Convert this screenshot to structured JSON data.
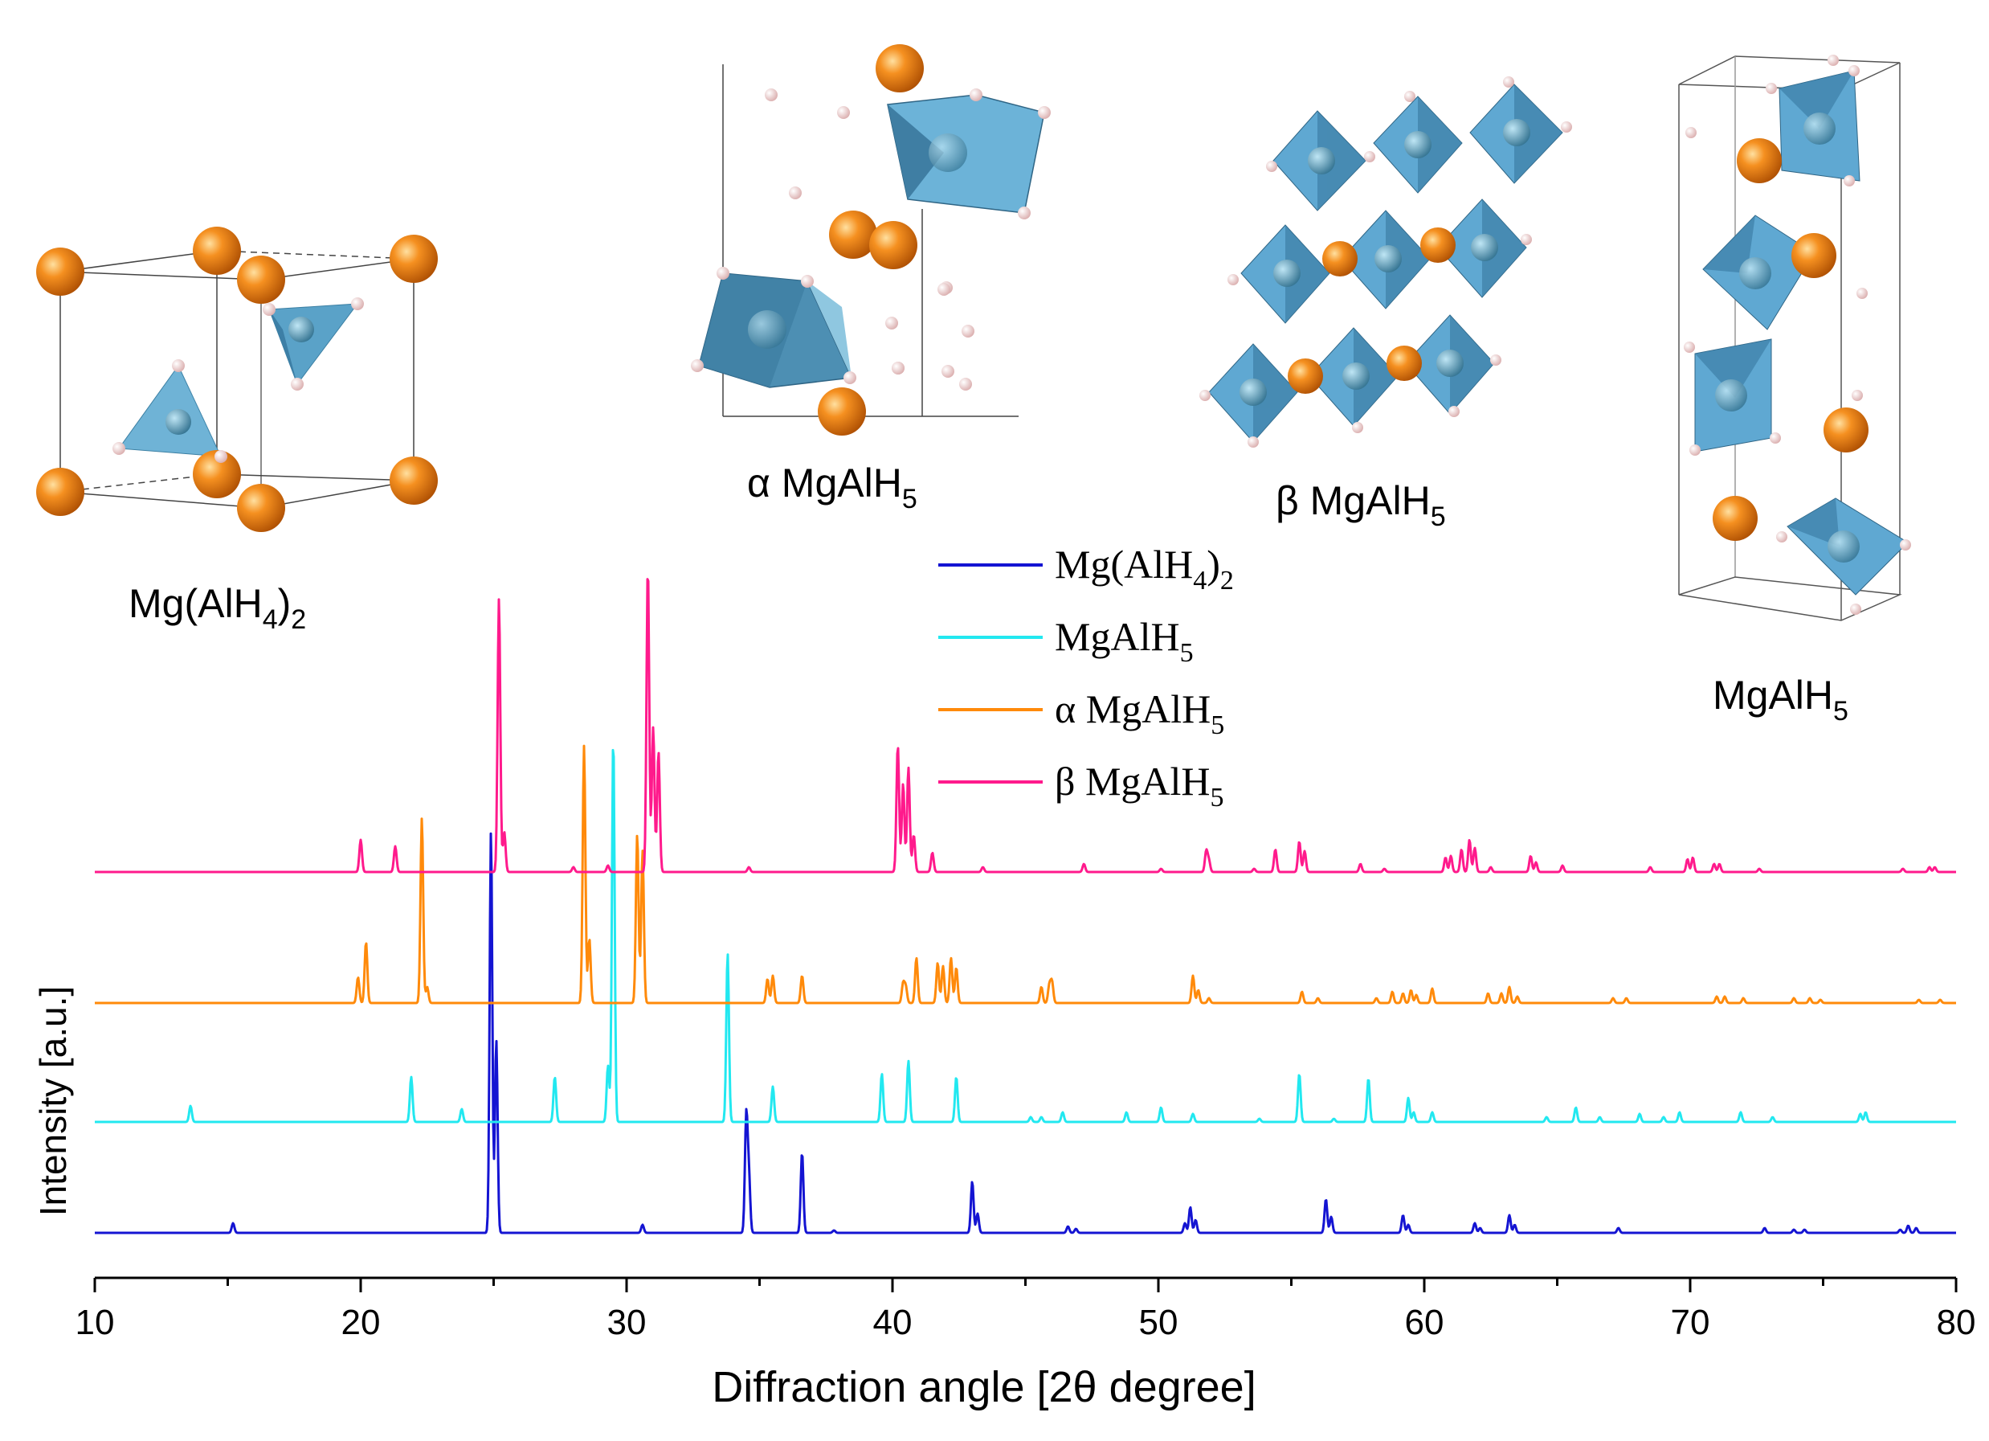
{
  "chart_data": {
    "type": "line",
    "title": "",
    "xlabel": "Diffraction angle [2θ degree]",
    "ylabel": "Intensity [a.u.]",
    "xlim": [
      10,
      80
    ],
    "x_ticks": [
      10,
      20,
      30,
      40,
      50,
      60,
      70,
      80
    ],
    "y_ticks": [],
    "grid": false,
    "legend_position": "top-center",
    "series": [
      {
        "name": "Mg(AlH4)2",
        "label_main": "Mg(AlH",
        "label_sub": "4",
        "label_tail": ")",
        "label_sub2": "2",
        "color": "#1414d2",
        "baseline": 0,
        "peaks": [
          [
            15.2,
            0.6
          ],
          [
            24.9,
            25
          ],
          [
            25.1,
            12
          ],
          [
            30.6,
            0.5
          ],
          [
            34.5,
            7.2
          ],
          [
            34.6,
            3.5
          ],
          [
            36.6,
            5.0
          ],
          [
            37.8,
            0.15
          ],
          [
            43.0,
            3.2
          ],
          [
            43.2,
            1.2
          ],
          [
            46.6,
            0.4
          ],
          [
            46.9,
            0.25
          ],
          [
            51.0,
            0.6
          ],
          [
            51.2,
            1.6
          ],
          [
            51.4,
            0.8
          ],
          [
            56.3,
            2.1
          ],
          [
            56.5,
            1.0
          ],
          [
            59.2,
            1.1
          ],
          [
            59.4,
            0.5
          ],
          [
            61.9,
            0.6
          ],
          [
            62.1,
            0.3
          ],
          [
            63.2,
            1.1
          ],
          [
            63.4,
            0.5
          ],
          [
            67.3,
            0.3
          ],
          [
            72.8,
            0.3
          ],
          [
            73.9,
            0.2
          ],
          [
            74.3,
            0.2
          ],
          [
            77.9,
            0.2
          ],
          [
            78.2,
            0.45
          ],
          [
            78.5,
            0.3
          ]
        ]
      },
      {
        "name": "MgAlH5",
        "label_main": "MgAlH",
        "label_sub": "5",
        "label_tail": "",
        "label_sub2": "",
        "color": "#22e8f0",
        "baseline": 1,
        "peaks": [
          [
            13.6,
            1.0
          ],
          [
            21.9,
            2.8
          ],
          [
            23.8,
            0.8
          ],
          [
            27.3,
            2.8
          ],
          [
            29.3,
            3.5
          ],
          [
            29.5,
            24
          ],
          [
            33.8,
            10.5
          ],
          [
            35.5,
            2.2
          ],
          [
            39.6,
            3.0
          ],
          [
            40.6,
            3.8
          ],
          [
            42.4,
            2.8
          ],
          [
            45.2,
            0.3
          ],
          [
            45.6,
            0.3
          ],
          [
            46.4,
            0.6
          ],
          [
            48.8,
            0.6
          ],
          [
            50.1,
            0.9
          ],
          [
            51.3,
            0.5
          ],
          [
            53.8,
            0.2
          ],
          [
            55.3,
            3.0
          ],
          [
            56.6,
            0.2
          ],
          [
            57.9,
            2.7
          ],
          [
            59.4,
            1.5
          ],
          [
            59.6,
            0.6
          ],
          [
            60.3,
            0.6
          ],
          [
            64.6,
            0.3
          ],
          [
            65.7,
            0.9
          ],
          [
            66.6,
            0.3
          ],
          [
            68.1,
            0.5
          ],
          [
            69.0,
            0.3
          ],
          [
            69.6,
            0.6
          ],
          [
            71.9,
            0.6
          ],
          [
            73.1,
            0.3
          ],
          [
            76.4,
            0.5
          ],
          [
            76.6,
            0.6
          ]
        ]
      },
      {
        "name": "α MgAlH5",
        "label_main": "α MgAlH",
        "label_sub": "5",
        "label_tail": "",
        "label_sub2": "",
        "color": "#ff8a0a",
        "baseline": 2,
        "peaks": [
          [
            19.9,
            1.6
          ],
          [
            20.2,
            3.8
          ],
          [
            22.3,
            11.5
          ],
          [
            22.5,
            1.0
          ],
          [
            28.4,
            16
          ],
          [
            28.6,
            4
          ],
          [
            30.4,
            10.5
          ],
          [
            30.6,
            9.5
          ],
          [
            35.3,
            1.5
          ],
          [
            35.5,
            1.7
          ],
          [
            36.6,
            1.7
          ],
          [
            40.4,
            1.2
          ],
          [
            40.5,
            1.0
          ],
          [
            40.9,
            2.8
          ],
          [
            41.7,
            2.5
          ],
          [
            41.9,
            2.3
          ],
          [
            42.2,
            2.8
          ],
          [
            42.4,
            2.2
          ],
          [
            45.6,
            1.0
          ],
          [
            45.9,
            1.1
          ],
          [
            46.0,
            1.3
          ],
          [
            51.3,
            1.7
          ],
          [
            51.5,
            0.8
          ],
          [
            51.9,
            0.3
          ],
          [
            55.4,
            0.7
          ],
          [
            56.0,
            0.3
          ],
          [
            58.2,
            0.3
          ],
          [
            58.8,
            0.7
          ],
          [
            59.2,
            0.6
          ],
          [
            59.5,
            0.8
          ],
          [
            59.7,
            0.5
          ],
          [
            60.3,
            0.9
          ],
          [
            62.4,
            0.6
          ],
          [
            62.9,
            0.6
          ],
          [
            63.2,
            1.0
          ],
          [
            63.5,
            0.4
          ],
          [
            67.1,
            0.3
          ],
          [
            67.6,
            0.3
          ],
          [
            71.0,
            0.4
          ],
          [
            71.3,
            0.4
          ],
          [
            72.0,
            0.3
          ],
          [
            73.9,
            0.3
          ],
          [
            74.5,
            0.3
          ],
          [
            74.9,
            0.2
          ],
          [
            78.6,
            0.2
          ],
          [
            79.4,
            0.2
          ]
        ]
      },
      {
        "name": "β MgAlH5",
        "label_main": "β MgAlH",
        "label_sub": "5",
        "label_tail": "",
        "label_sub2": "",
        "color": "#ff1a8c",
        "baseline": 3,
        "peaks": [
          [
            20.0,
            2.0
          ],
          [
            21.3,
            1.6
          ],
          [
            25.2,
            17
          ],
          [
            25.4,
            2.5
          ],
          [
            28.0,
            0.3
          ],
          [
            29.3,
            0.4
          ],
          [
            30.8,
            19
          ],
          [
            31.0,
            9
          ],
          [
            31.2,
            7.5
          ],
          [
            34.6,
            0.3
          ],
          [
            40.2,
            7.9
          ],
          [
            40.4,
            5.5
          ],
          [
            40.6,
            6.5
          ],
          [
            40.8,
            2.3
          ],
          [
            41.5,
            1.2
          ],
          [
            43.4,
            0.3
          ],
          [
            47.2,
            0.5
          ],
          [
            50.1,
            0.2
          ],
          [
            51.8,
            1.3
          ],
          [
            51.9,
            0.7
          ],
          [
            53.6,
            0.2
          ],
          [
            54.4,
            1.4
          ],
          [
            55.3,
            1.9
          ],
          [
            55.5,
            1.3
          ],
          [
            57.6,
            0.5
          ],
          [
            58.5,
            0.2
          ],
          [
            60.8,
            0.9
          ],
          [
            61.0,
            1.0
          ],
          [
            61.4,
            1.4
          ],
          [
            61.7,
            2.0
          ],
          [
            61.9,
            1.5
          ],
          [
            62.5,
            0.3
          ],
          [
            64.0,
            1.0
          ],
          [
            64.2,
            0.6
          ],
          [
            65.2,
            0.4
          ],
          [
            68.5,
            0.3
          ],
          [
            69.9,
            0.8
          ],
          [
            70.1,
            0.9
          ],
          [
            70.9,
            0.5
          ],
          [
            71.1,
            0.5
          ],
          [
            72.6,
            0.2
          ],
          [
            78.0,
            0.2
          ],
          [
            79.0,
            0.3
          ],
          [
            79.2,
            0.3
          ]
        ]
      }
    ],
    "structures": [
      {
        "name": "Mg(AlH4)2",
        "main": "Mg(AlH",
        "sub": "4",
        "tail": ")",
        "sub2": "2"
      },
      {
        "name": "α MgAlH5",
        "main": "α MgAlH",
        "sub": "5",
        "tail": "",
        "sub2": ""
      },
      {
        "name": "β MgAlH5",
        "main": "β MgAlH",
        "sub": "5",
        "tail": "",
        "sub2": ""
      },
      {
        "name": "MgAlH5",
        "main": "MgAlH",
        "sub": "5",
        "tail": "",
        "sub2": ""
      }
    ],
    "colors": {
      "mg_atom": "#f07810",
      "al_polyhedron": "#5aa8d0",
      "h_atom": "#f2d4d4"
    }
  }
}
